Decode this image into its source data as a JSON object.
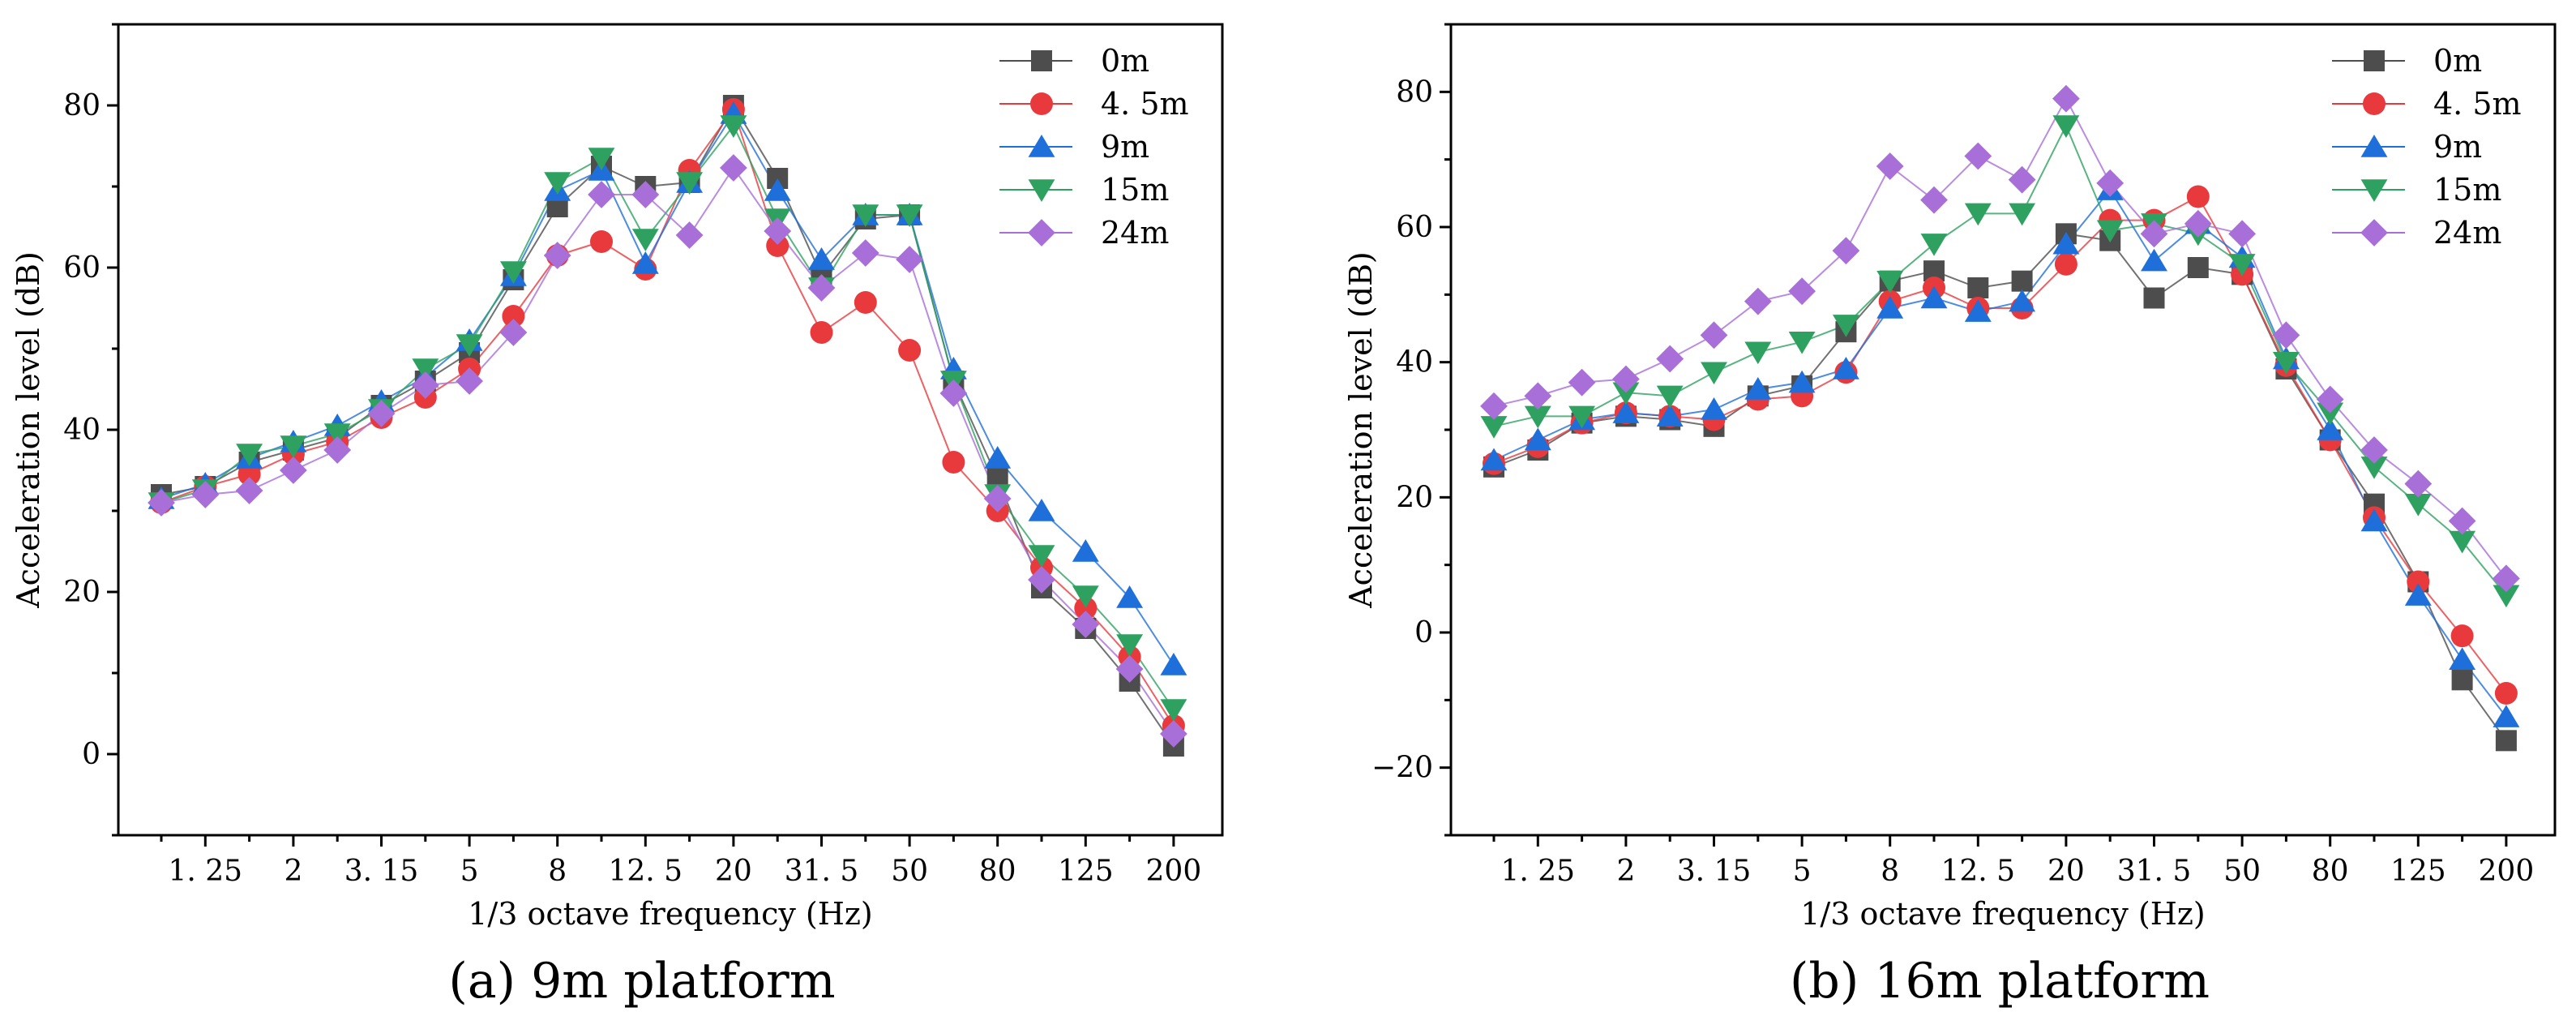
{
  "figure": {
    "captions": [
      "(a) 9m platform",
      "(b) 16m platform"
    ]
  },
  "chart_data": [
    {
      "type": "line",
      "title": "(a) 9m platform",
      "xlabel": "1/3 octave frequency (Hz)",
      "ylabel": "Acceleration level (dB)",
      "ylim": [
        -10,
        90
      ],
      "yticks": [
        0,
        20,
        40,
        60,
        80
      ],
      "x_positions": [
        "1",
        "1.25",
        "1.6",
        "2",
        "2.5",
        "3.15",
        "4",
        "5",
        "6.3",
        "8",
        "10",
        "12.5",
        "16",
        "20",
        "25",
        "31.5",
        "40",
        "50",
        "63",
        "80",
        "100",
        "125",
        "160",
        "200"
      ],
      "tick_labels": [
        "1.25",
        "2",
        "3.15",
        "5",
        "8",
        "12.5",
        "20",
        "31.5",
        "50",
        "80",
        "125",
        "200"
      ],
      "legend_position": "top-right",
      "series": [
        {
          "name": "0m",
          "marker": "square",
          "color": "#4d4d4d",
          "values": [
            32,
            33,
            36,
            37.5,
            39,
            43,
            46,
            49.5,
            58.5,
            67.5,
            72.5,
            70,
            70.5,
            80,
            71,
            59,
            66,
            66.5,
            46,
            34,
            20.5,
            15.5,
            9,
            1
          ]
        },
        {
          "name": "4.5m",
          "marker": "circle",
          "color": "#e8393d",
          "values": [
            31,
            33,
            34.5,
            37,
            38.5,
            41.5,
            44,
            47.5,
            54,
            61.5,
            63.2,
            59.8,
            72,
            79.5,
            62.7,
            52,
            55.7,
            49.8,
            36,
            30,
            23,
            18,
            12,
            3.5
          ]
        },
        {
          "name": "9m",
          "marker": "triangle-up",
          "color": "#1f6fdb",
          "values": [
            31.5,
            33.3,
            36.5,
            38.5,
            40.5,
            43.5,
            46.5,
            51,
            59,
            69.5,
            72,
            60.5,
            70.5,
            79,
            69.5,
            61,
            66.5,
            66.5,
            47.5,
            36.5,
            30,
            25,
            19.3,
            11
          ]
        },
        {
          "name": "15m",
          "marker": "triangle-down",
          "color": "#2ea160",
          "values": [
            31,
            32.6,
            37,
            38,
            39.5,
            42.5,
            47.5,
            50.5,
            59.5,
            70.5,
            73.5,
            63.5,
            70.5,
            77.5,
            66,
            57.5,
            66.5,
            66.5,
            46,
            32,
            24.5,
            19.5,
            13.5,
            5.5
          ]
        },
        {
          "name": "24m",
          "marker": "diamond",
          "color": "#a86fd8",
          "values": [
            31,
            32,
            32.5,
            35,
            37.5,
            42,
            45.5,
            46,
            52,
            61.5,
            69,
            69,
            64,
            72.3,
            64.5,
            57.5,
            61.8,
            61,
            44.5,
            31.5,
            21.5,
            16,
            10.5,
            2.5
          ]
        }
      ]
    },
    {
      "type": "line",
      "title": "(b) 16m platform",
      "xlabel": "1/3 octave frequency (Hz)",
      "ylabel": "Acceleration level (dB)",
      "ylim": [
        -30,
        90
      ],
      "yticks": [
        -20,
        0,
        20,
        40,
        60,
        80
      ],
      "x_positions": [
        "1",
        "1.25",
        "1.6",
        "2",
        "2.5",
        "3.15",
        "4",
        "5",
        "6.3",
        "8",
        "10",
        "12.5",
        "16",
        "20",
        "25",
        "31.5",
        "40",
        "50",
        "63",
        "80",
        "100",
        "125",
        "160",
        "200"
      ],
      "tick_labels": [
        "1.25",
        "2",
        "3.15",
        "5",
        "8",
        "12.5",
        "20",
        "31.5",
        "50",
        "80",
        "125",
        "200"
      ],
      "legend_position": "top-right",
      "series": [
        {
          "name": "0m",
          "marker": "square",
          "color": "#4d4d4d",
          "values": [
            24.5,
            27,
            31,
            32,
            31.5,
            30.5,
            35,
            36.5,
            44.5,
            52,
            53.5,
            51,
            52,
            59,
            58,
            49.5,
            54,
            53,
            39,
            28.5,
            19,
            7.5,
            -7,
            -16
          ]
        },
        {
          "name": "4.5m",
          "marker": "circle",
          "color": "#e8393d",
          "values": [
            25,
            27.5,
            31,
            32.5,
            32,
            31.5,
            34.5,
            35,
            38.5,
            49,
            51,
            48,
            48,
            54.5,
            61,
            61,
            64.5,
            53,
            39.5,
            28.5,
            17,
            7.5,
            -0.5,
            -9
          ]
        },
        {
          "name": "9m",
          "marker": "triangle-up",
          "color": "#1f6fdb",
          "values": [
            25.5,
            28.5,
            31.5,
            32.5,
            32,
            33,
            36,
            37,
            39,
            48,
            49.5,
            47.5,
            49,
            57.5,
            65.5,
            55,
            60.5,
            55.5,
            40.5,
            30,
            16.5,
            5.5,
            -4,
            -12.5
          ]
        },
        {
          "name": "15m",
          "marker": "triangle-down",
          "color": "#2ea160",
          "values": [
            30.5,
            32,
            32,
            35.5,
            35,
            38.5,
            41.5,
            43,
            45.5,
            52,
            57.5,
            62,
            62,
            75,
            59.5,
            60.5,
            59,
            54.5,
            40,
            32.5,
            24.5,
            19,
            13.5,
            5.5
          ]
        },
        {
          "name": "24m",
          "marker": "diamond",
          "color": "#a86fd8",
          "values": [
            33.5,
            35,
            37,
            37.5,
            40.5,
            44,
            49,
            50.5,
            56.5,
            69,
            64,
            70.5,
            67,
            79,
            66.5,
            59,
            60.5,
            59,
            44,
            34.5,
            27,
            22,
            16.5,
            8
          ]
        }
      ]
    }
  ]
}
